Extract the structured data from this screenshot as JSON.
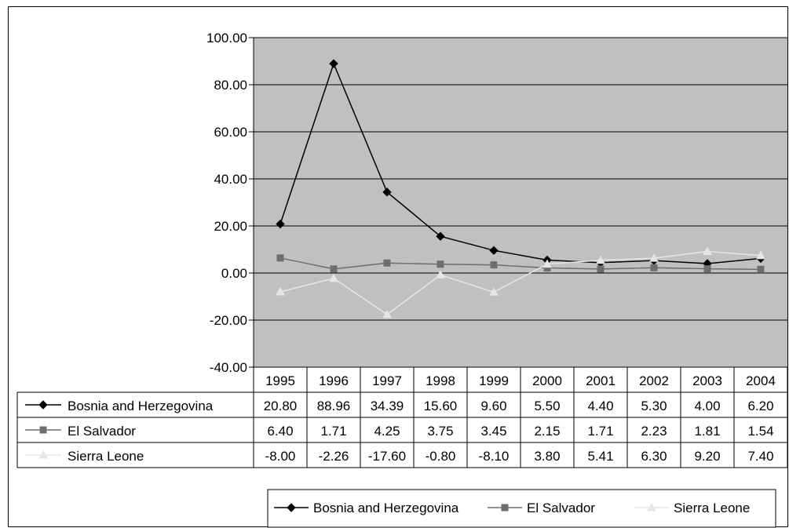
{
  "chart_data": {
    "type": "line",
    "categories": [
      "1995",
      "1996",
      "1997",
      "1998",
      "1999",
      "2000",
      "2001",
      "2002",
      "2003",
      "2004"
    ],
    "ylim": [
      -40,
      100
    ],
    "yticks": [
      "100.00",
      "80.00",
      "60.00",
      "40.00",
      "20.00",
      "0.00",
      "-20.00",
      "-40.00"
    ],
    "ytick_values": [
      100,
      80,
      60,
      40,
      20,
      0,
      -20,
      -40
    ],
    "grid": true,
    "legend_position": "bottom",
    "data_table": true,
    "series": [
      {
        "name": "Bosnia and Herzegovina",
        "values": [
          20.8,
          88.96,
          34.39,
          15.6,
          9.6,
          5.5,
          4.4,
          5.3,
          4.0,
          6.2
        ],
        "labels": [
          "20.80",
          "88.96",
          "34.39",
          "15.60",
          "9.60",
          "5.50",
          "4.40",
          "5.30",
          "4.00",
          "6.20"
        ],
        "color": "#000000",
        "marker": "diamond"
      },
      {
        "name": "El Salvador",
        "values": [
          6.4,
          1.71,
          4.25,
          3.75,
          3.45,
          2.15,
          1.71,
          2.23,
          1.81,
          1.54
        ],
        "labels": [
          "6.40",
          "1.71",
          "4.25",
          "3.75",
          "3.45",
          "2.15",
          "1.71",
          "2.23",
          "1.81",
          "1.54"
        ],
        "color": "#6e6e6e",
        "marker": "square"
      },
      {
        "name": "Sierra Leone",
        "values": [
          -8.0,
          -2.26,
          -17.6,
          -0.8,
          -8.1,
          3.8,
          5.41,
          6.3,
          9.2,
          7.4
        ],
        "labels": [
          "-8.00",
          "-2.26",
          "-17.60",
          "-0.80",
          "-8.10",
          "3.80",
          "5.41",
          "6.30",
          "9.20",
          "7.40"
        ],
        "color": "#e6e6e6",
        "marker": "triangle"
      }
    ],
    "plot_background": "#c0c0c0"
  }
}
